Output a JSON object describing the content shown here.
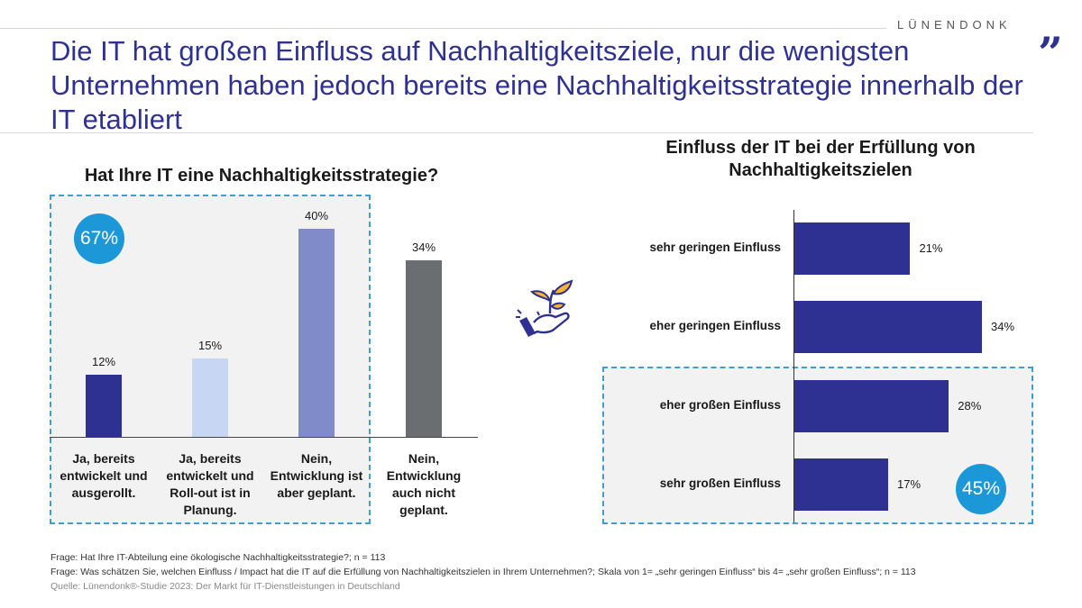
{
  "header": {
    "brand": "LÜNENDONK",
    "quote_mark": "„",
    "title": "Die IT hat großen Einfluss auf Nachhaltigkeitsziele, nur die wenigsten Unternehmen haben jedoch bereits eine Nachhaltigkeitsstrategie innerhalb der IT etabliert"
  },
  "left_chart": {
    "highlight": "67%"
  },
  "right_chart": {
    "highlight": "45%"
  },
  "icon": "plant-in-hand-icon",
  "colors": {
    "title": "#2e3192",
    "accent": "#1c98d8"
  },
  "chart_data": [
    {
      "type": "bar",
      "title": "Hat Ihre IT eine Nachhaltigkeitsstrategie?",
      "categories": [
        "Ja, bereits entwickelt und ausgerollt.",
        "Ja, bereits entwickelt und Roll-out ist in Planung.",
        "Nein, Entwicklung ist aber geplant.",
        "Nein, Entwicklung auch nicht geplant."
      ],
      "values": [
        12,
        15,
        40,
        34
      ],
      "labels": [
        "12%",
        "15%",
        "40%",
        "34%"
      ],
      "colors": [
        "#2e3192",
        "#c7d6f3",
        "#7f8cc9",
        "#6a6e71"
      ],
      "ylim": [
        0,
        40
      ]
    },
    {
      "type": "bar",
      "orientation": "horizontal",
      "title": "Einfluss der IT bei der Erfüllung von Nachhaltigkeitszielen",
      "categories": [
        "sehr geringen Einfluss",
        "eher geringen Einfluss",
        "eher großen Einfluss",
        "sehr großen Einfluss"
      ],
      "values": [
        21,
        34,
        28,
        17
      ],
      "labels": [
        "21%",
        "34%",
        "28%",
        "17%"
      ],
      "color": "#2e3192",
      "xlim": [
        0,
        34
      ]
    }
  ],
  "footer": {
    "q1": "Frage: Hat Ihre IT-Abteilung eine ökologische Nachhaltigkeitsstrategie?; n = 113",
    "q2": "Frage: Was schätzen Sie, welchen Einfluss / Impact hat die IT auf die Erfüllung von Nachhaltigkeitszielen in Ihrem Unternehmen?; Skala von 1= „sehr geringen Einfluss“ bis 4= „sehr großen Einfluss“; n = 113",
    "source": "Quelle: Lünendonk®-Studie 2023: Der Markt für IT-Dienstleistungen in Deutschland"
  }
}
